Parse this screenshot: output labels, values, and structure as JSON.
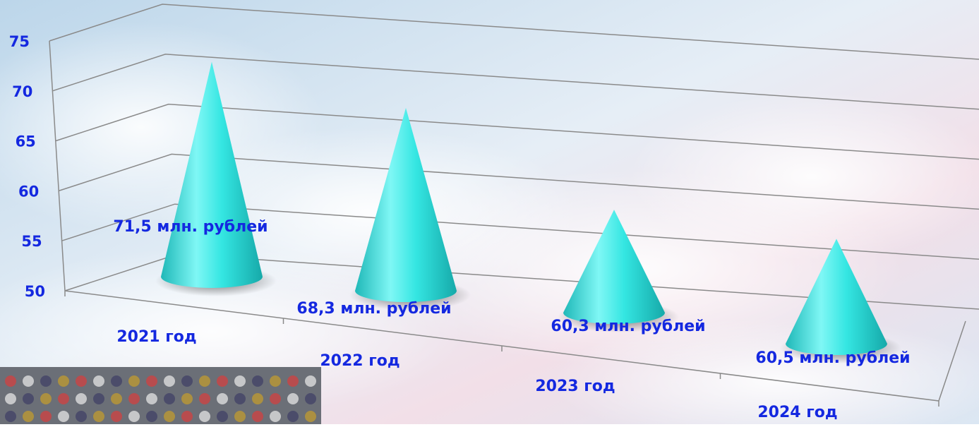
{
  "chart_data": {
    "type": "cone",
    "categories": [
      "2021 год",
      "2022 год",
      "2023 год",
      "2024 год"
    ],
    "values": [
      71.5,
      68.3,
      60.3,
      60.5
    ],
    "value_labels": [
      "71,5 млн. рублей",
      "68,3 млн. рублей",
      "60,3 млн. рублей",
      "60,5 млн. рублей"
    ],
    "color": "#30e8e4",
    "ylim": [
      50,
      75
    ],
    "yticks": [
      50,
      55,
      60,
      65,
      70,
      75
    ],
    "grid": true
  }
}
